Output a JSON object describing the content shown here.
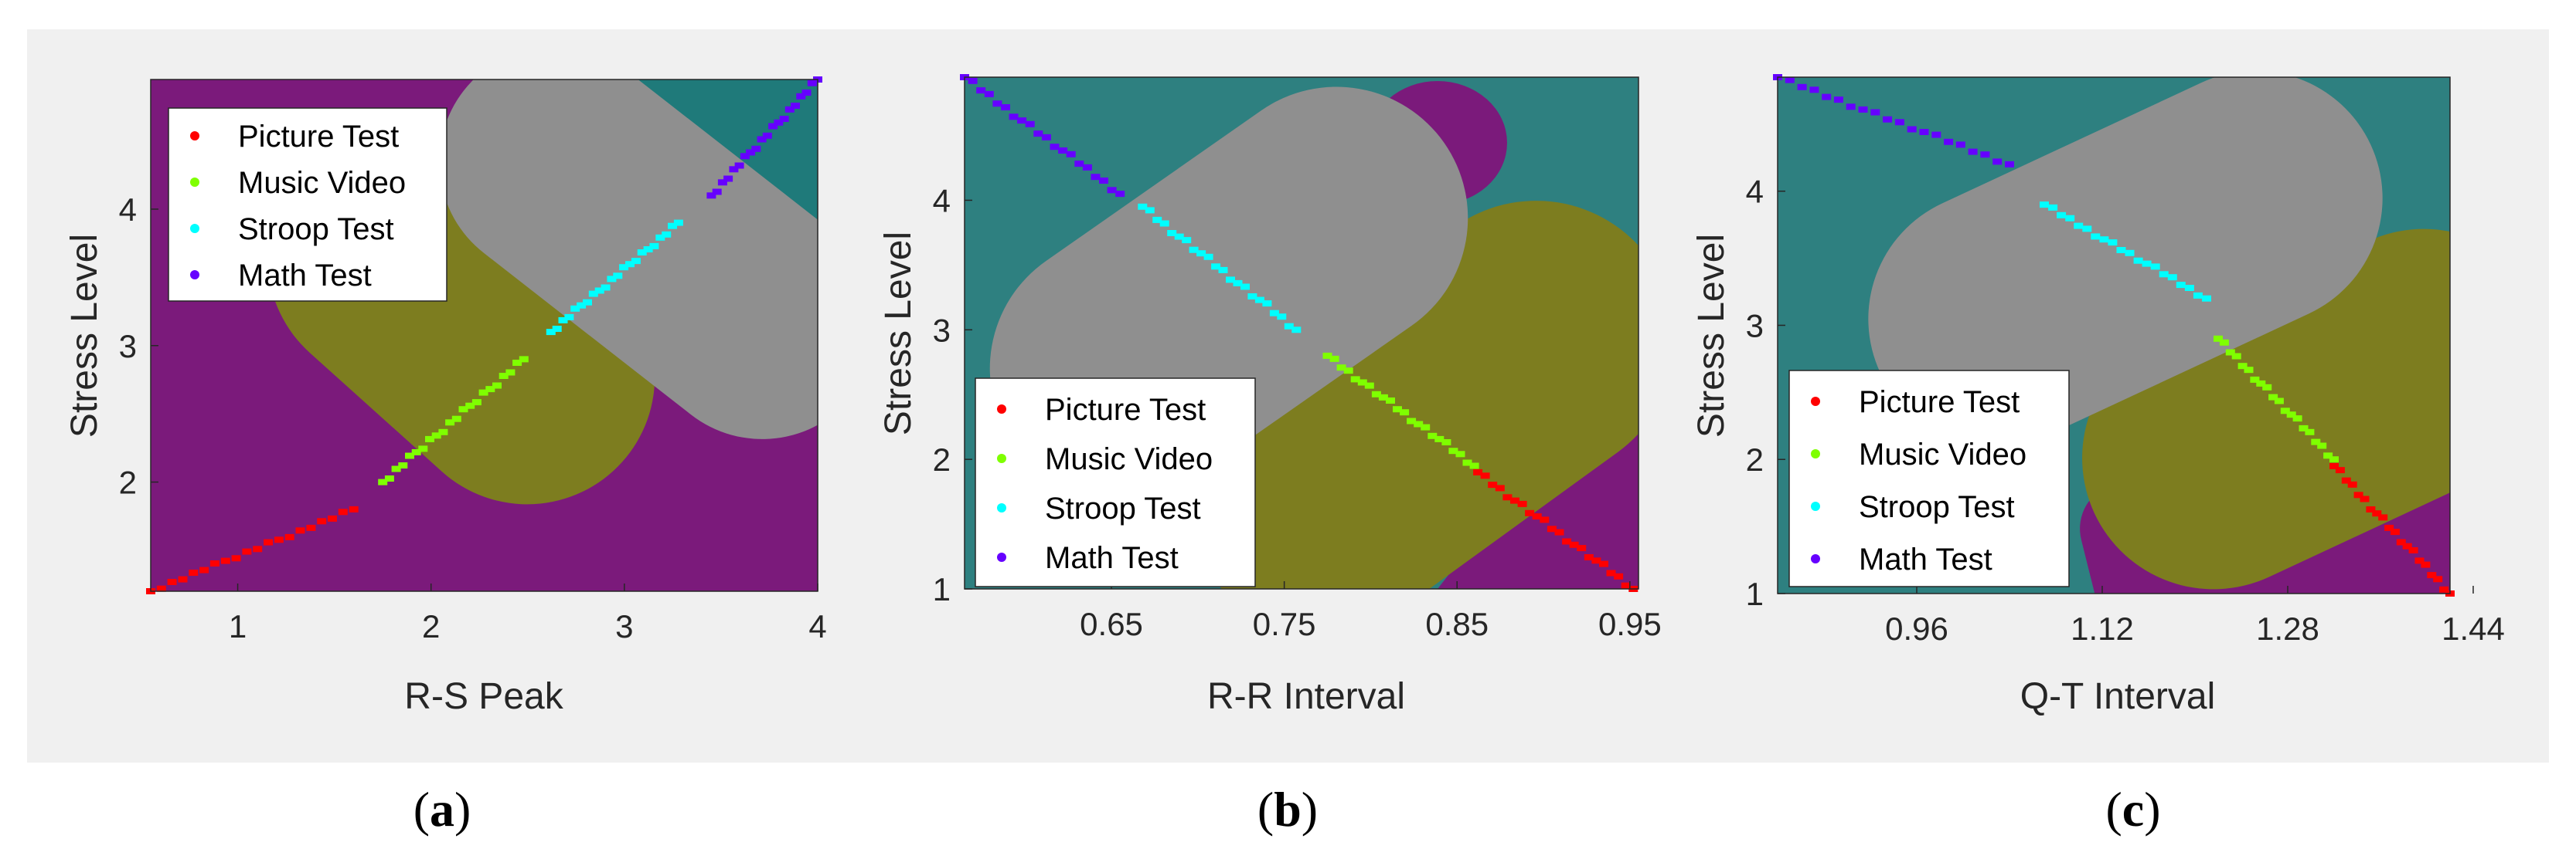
{
  "figure": {
    "captions": [
      "(a)",
      "(b)",
      "(c)"
    ],
    "caption_parts": [
      {
        "open": "(",
        "letter": "a",
        "close": ")"
      },
      {
        "open": "(",
        "letter": "b",
        "close": ")"
      },
      {
        "open": "(",
        "letter": "c",
        "close": ")"
      }
    ]
  },
  "colors": {
    "panel_bg": "#f0f0f0",
    "region_purple": "#7b1a7b",
    "region_olive": "#7d7d1f",
    "region_gray": "#8f8f8f",
    "region_teal": "#2e8080",
    "region_teal_dark": "#1f7a7a",
    "Picture Test": "#ff0000",
    "Music Video": "#7fff00",
    "Stroop Test": "#00ffff",
    "Math Test": "#6600ff"
  },
  "chart_data": [
    {
      "type": "scatter",
      "id": "a",
      "xlabel": "R-S Peak",
      "ylabel": "Stress Level",
      "xlim": [
        0.55,
        4.0
      ],
      "ylim": [
        1.2,
        4.95
      ],
      "xticks": [
        1,
        2,
        3,
        4
      ],
      "xtick_labels": [
        "1",
        "2",
        "3",
        "4"
      ],
      "yticks": [
        2,
        3,
        4
      ],
      "ytick_labels": [
        "2",
        "3",
        "4"
      ],
      "legend": [
        "Picture Test",
        "Music Video",
        "Stroop Test",
        "Math Test"
      ],
      "legend_position": "top-left",
      "series": [
        {
          "name": "Picture Test",
          "x_range": [
            0.55,
            1.6
          ],
          "y_range": [
            1.2,
            1.8
          ],
          "count": 20
        },
        {
          "name": "Music Video",
          "x_range": [
            1.75,
            2.48
          ],
          "y_range": [
            2.0,
            2.9
          ],
          "count": 22
        },
        {
          "name": "Stroop Test",
          "x_range": [
            2.62,
            3.28
          ],
          "y_range": [
            3.1,
            3.9
          ],
          "count": 22
        },
        {
          "name": "Math Test",
          "x_range": [
            3.45,
            4.0
          ],
          "y_range": [
            4.1,
            4.95
          ],
          "count": 20
        }
      ]
    },
    {
      "type": "scatter",
      "id": "b",
      "xlabel": "R-R Interval",
      "ylabel": "Stress Level",
      "xlim": [
        0.565,
        0.955
      ],
      "ylim": [
        1.0,
        4.95
      ],
      "xticks": [
        0.65,
        0.75,
        0.85,
        0.95
      ],
      "xtick_labels": [
        "0.65",
        "0.75",
        "0.85",
        "0.95"
      ],
      "yticks": [
        1,
        2,
        3,
        4
      ],
      "ytick_labels": [
        "1",
        "2",
        "3",
        "4"
      ],
      "legend": [
        "Picture Test",
        "Music Video",
        "Stroop Test",
        "Math Test"
      ],
      "legend_position": "bottom-left",
      "series": [
        {
          "name": "Math Test",
          "x_range": [
            0.565,
            0.655
          ],
          "y_range": [
            4.95,
            4.05
          ],
          "count": 20
        },
        {
          "name": "Stroop Test",
          "x_range": [
            0.668,
            0.757
          ],
          "y_range": [
            3.95,
            3.0
          ],
          "count": 22
        },
        {
          "name": "Music Video",
          "x_range": [
            0.775,
            0.86
          ],
          "y_range": [
            2.8,
            1.95
          ],
          "count": 22
        },
        {
          "name": "Picture Test",
          "x_range": [
            0.862,
            0.952
          ],
          "y_range": [
            1.9,
            1.0
          ],
          "count": 22
        }
      ]
    },
    {
      "type": "scatter",
      "id": "c",
      "xlabel": "Q-T Interval",
      "ylabel": "Stress Level",
      "xlim": [
        0.84,
        1.42
      ],
      "ylim": [
        1.0,
        4.85
      ],
      "xticks": [
        0.96,
        1.12,
        1.28,
        1.44
      ],
      "xtick_labels": [
        "0.96",
        "1.12",
        "1.28",
        "1.44"
      ],
      "yticks": [
        1,
        2,
        3,
        4
      ],
      "ytick_labels": [
        "1",
        "2",
        "3",
        "4"
      ],
      "legend": [
        "Picture Test",
        "Music Video",
        "Stroop Test",
        "Math Test"
      ],
      "legend_position": "bottom-left",
      "series": [
        {
          "name": "Math Test",
          "x_range": [
            0.84,
            1.04
          ],
          "y_range": [
            4.85,
            4.2
          ],
          "count": 20
        },
        {
          "name": "Stroop Test",
          "x_range": [
            1.07,
            1.21
          ],
          "y_range": [
            3.9,
            3.2
          ],
          "count": 20
        },
        {
          "name": "Music Video",
          "x_range": [
            1.22,
            1.32
          ],
          "y_range": [
            2.9,
            2.0
          ],
          "count": 20
        },
        {
          "name": "Picture Test",
          "x_range": [
            1.32,
            1.42
          ],
          "y_range": [
            1.95,
            1.0
          ],
          "count": 20
        }
      ]
    }
  ]
}
